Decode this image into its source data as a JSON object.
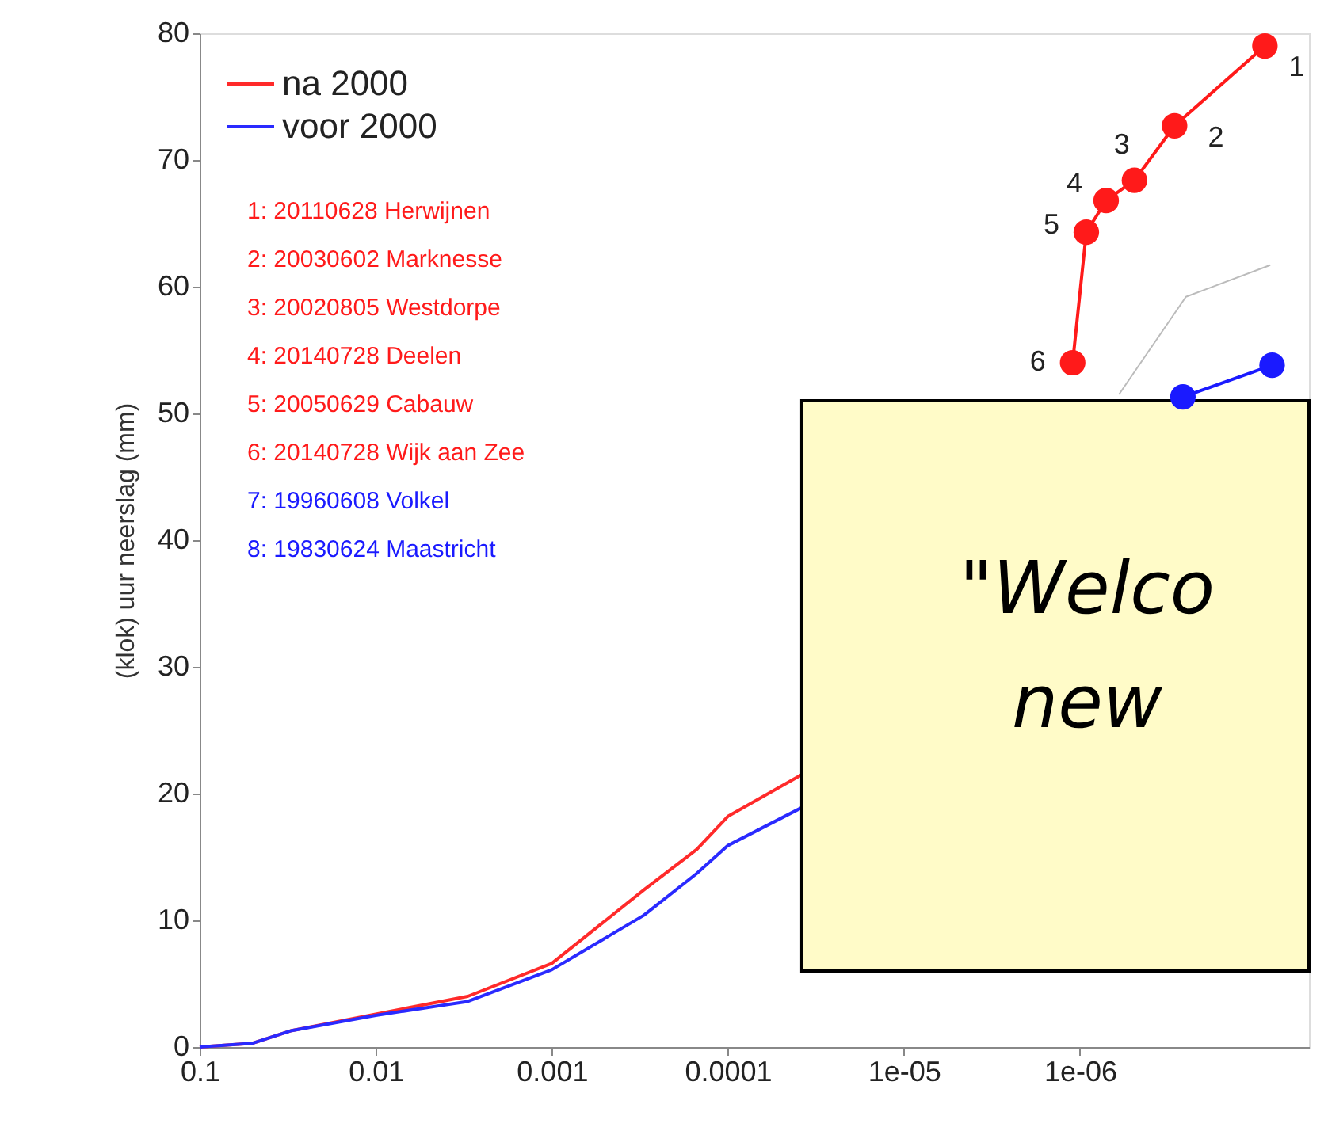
{
  "chart_data": {
    "type": "line",
    "ylabel": "(klok) uur neerslag (mm)",
    "xlim": [
      0.1,
      5e-08
    ],
    "ylim": [
      0,
      80
    ],
    "log": "x",
    "grid": false,
    "legend": "top left",
    "xticks": [
      {
        "value": 0.1,
        "label": "0.1"
      },
      {
        "value": 0.01,
        "label": "0.01"
      },
      {
        "value": 0.001,
        "label": "0.001"
      },
      {
        "value": 0.0001,
        "label": "0.0001"
      },
      {
        "value": 1e-05,
        "label": "1e-05"
      },
      {
        "value": 1e-06,
        "label": "1e-06"
      }
    ],
    "yticks": [
      0,
      10,
      20,
      30,
      40,
      50,
      60,
      70,
      80
    ],
    "series": [
      {
        "name": "na 2000",
        "color": "#ff2a2a",
        "marker": "none",
        "x": [
          0.1,
          0.05,
          0.03,
          0.01,
          0.003,
          0.001,
          0.0003,
          0.00015,
          0.0001,
          3.8e-05
        ],
        "values": [
          0,
          0.3,
          1.3,
          2.6,
          4.0,
          6.6,
          12.4,
          15.6,
          18.2,
          21.5
        ]
      },
      {
        "name": "voor 2000",
        "color": "#2a2aff",
        "marker": "none",
        "x": [
          0.1,
          0.05,
          0.03,
          0.01,
          0.003,
          0.001,
          0.0003,
          0.00015,
          0.0001,
          3.8e-05
        ],
        "values": [
          0,
          0.3,
          1.3,
          2.5,
          3.6,
          6.1,
          10.4,
          13.7,
          15.9,
          18.9
        ]
      },
      {
        "color": "#ff1a1a",
        "marker": "circle",
        "x": [
          1.1e-06,
          9.2e-07,
          7.1e-07,
          4.9e-07,
          2.9e-07,
          8.9e-08
        ],
        "values": [
          54.0,
          64.3,
          66.8,
          68.4,
          72.7,
          79.0
        ]
      },
      {
        "color": "#1a1aff",
        "marker": "circle",
        "x": [
          2.6e-07,
          8.1e-08
        ],
        "values": [
          51.3,
          53.8
        ]
      },
      {
        "color": "#bbbbbb",
        "marker": "none",
        "x": [
          6e-07,
          2.5e-07,
          8.3e-08
        ],
        "values": [
          51.5,
          59.2,
          61.7
        ]
      }
    ],
    "annotations": [
      "1: 20110628 Herwijnen",
      "2: 20030602 Marknesse",
      "3: 20020805 Westdorpe",
      "4: 20140728 Deelen",
      "5: 20050629 Cabauw",
      "6: 20140728 Wijk aan Zee",
      "7: 19960608 Volkel",
      "8: 19830624 Maastricht",
      "6",
      "5",
      "4",
      "3",
      "2",
      "1",
      "\"Welco",
      "new"
    ]
  }
}
